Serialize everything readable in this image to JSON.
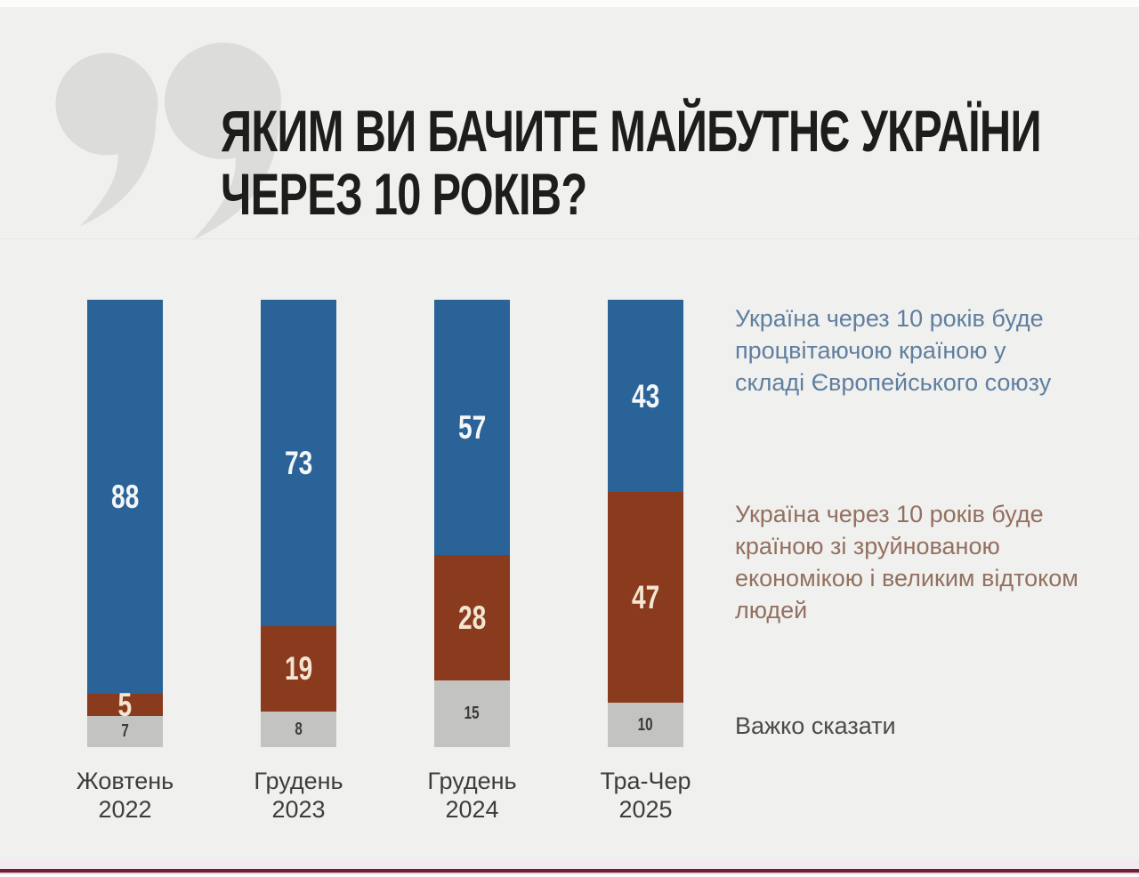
{
  "title": {
    "line1": "ЯКИМ ВИ БАЧИТЕ МАЙБУТНЄ УКРАЇНИ",
    "line2": "ЧЕРЕЗ 10 РОКІВ?"
  },
  "chart_data": {
    "type": "bar",
    "stacked": true,
    "unit": "percent",
    "ylim": [
      0,
      100
    ],
    "grid": false,
    "legend_position": "right",
    "categories": [
      "Жовтень 2022",
      "Грудень 2023",
      "Грудень 2024",
      "Тра-Чер 2025"
    ],
    "category_lines": [
      [
        "Жовтень",
        "2022"
      ],
      [
        "Грудень",
        "2023"
      ],
      [
        "Грудень",
        "2024"
      ],
      [
        "Тра-Чер",
        "2025"
      ]
    ],
    "series": [
      {
        "name": "Україна через 10 років буде процвітаючою країною у складі Європейського союзу",
        "color": "#2a6398",
        "label_color": "#f4f6f8",
        "values": [
          88,
          73,
          57,
          43
        ]
      },
      {
        "name": "Україна через 10 років буде країною зі зруйнованою економікою і великим відтоком людей",
        "color": "#8a3a1d",
        "label_color": "#f3e5d2",
        "values": [
          5,
          19,
          28,
          47
        ]
      },
      {
        "name": "Важко сказати",
        "color": "#c3c3c1",
        "label_color": "#3b3b39",
        "values": [
          7,
          8,
          15,
          10
        ]
      }
    ]
  },
  "legend": {
    "eu": {
      "text": "Україна через 10 років буде процвітаючою країною у складі Європейського союзу",
      "color": "#5f7fa0"
    },
    "ruined": {
      "text": "Україна через 10 років буде країною зі зруйнованою економікою і великим відтоком людей",
      "color": "#937061"
    },
    "hard": {
      "text": "Важко сказати",
      "color": "#4b4b49"
    }
  },
  "colors": {
    "background": "#f0f0ee",
    "title_text": "#1d1d1b",
    "quote_decoration": "#dcdcda",
    "category_label_text": "#3d3d3b",
    "footer_accent": "#6e2039"
  }
}
